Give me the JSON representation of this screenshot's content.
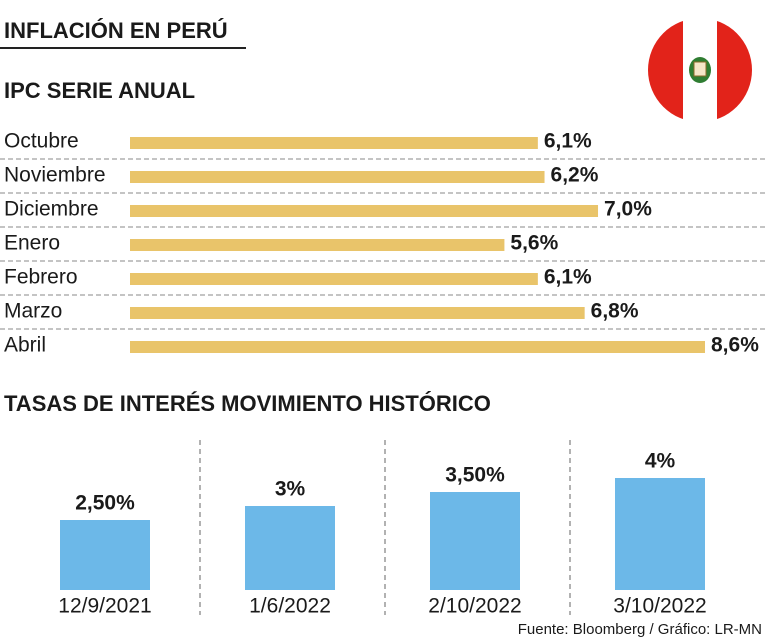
{
  "header": {
    "title": "INFLACIÓN EN PERÚ"
  },
  "chart_data": [
    {
      "type": "bar",
      "orientation": "horizontal",
      "title": "IPC SERIE ANUAL",
      "categories": [
        "Octubre",
        "Noviembre",
        "Diciembre",
        "Enero",
        "Febrero",
        "Marzo",
        "Abril"
      ],
      "values": [
        6.1,
        6.2,
        7.0,
        5.6,
        6.1,
        6.8,
        8.6
      ],
      "value_labels": [
        "6,1%",
        "6,2%",
        "7,0%",
        "5,6%",
        "6,1%",
        "6,8%",
        "8,6%"
      ],
      "color": "#e9c46a"
    },
    {
      "type": "bar",
      "orientation": "vertical",
      "title": "TASAS DE INTERÉS MOVIMIENTO HISTÓRICO",
      "categories": [
        "12/9/2021",
        "1/6/2022",
        "2/10/2022",
        "3/10/2022"
      ],
      "values": [
        2.5,
        3,
        3.5,
        4
      ],
      "value_labels": [
        "2,50%",
        "3%",
        "3,50%",
        "4%"
      ],
      "color": "#6cb8e8"
    }
  ],
  "footer": {
    "source": "Fuente: Bloomberg / Gráfico: LR-MN"
  }
}
